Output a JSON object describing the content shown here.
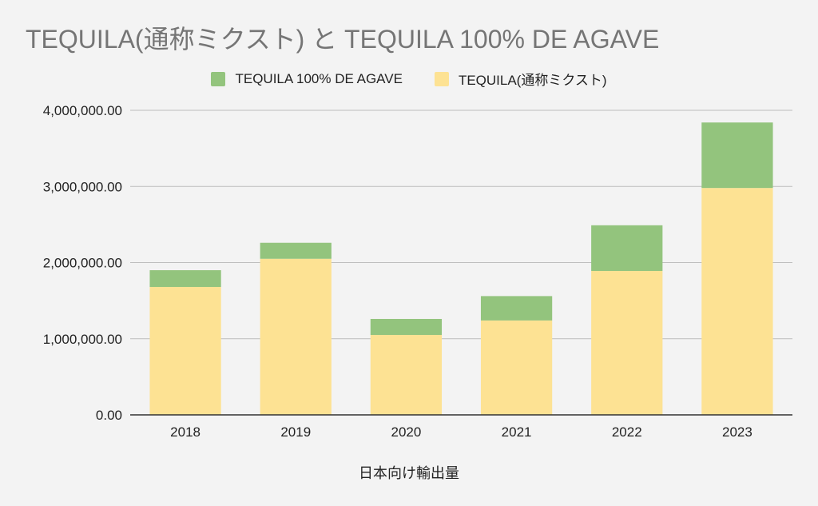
{
  "chart_data": {
    "type": "bar",
    "stacked": true,
    "title": "TEQUILA(通称ミクスト) と TEQUILA 100% DE AGAVE",
    "xlabel": "日本向け輸出量",
    "ylabel": "",
    "ylim": [
      0,
      4000000
    ],
    "yticks": [
      "0.00",
      "1,000,000.00",
      "2,000,000.00",
      "3,000,000.00",
      "4,000,000.00"
    ],
    "grid": true,
    "legend_placement": "top-center",
    "categories": [
      "2018",
      "2019",
      "2020",
      "2021",
      "2022",
      "2023"
    ],
    "series": [
      {
        "name": "TEQUILA(通称ミクスト)",
        "color": "#fde293",
        "values": [
          1680000,
          2050000,
          1050000,
          1240000,
          1890000,
          2980000
        ]
      },
      {
        "name": "TEQUILA 100% DE AGAVE",
        "color": "#93c47d",
        "values": [
          220000,
          210000,
          210000,
          320000,
          600000,
          860000
        ]
      }
    ],
    "legend_order": [
      1,
      0
    ]
  }
}
